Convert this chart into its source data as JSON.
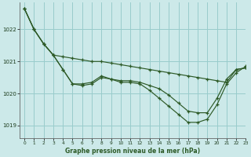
{
  "xlabel": "Graphe pression niveau de la mer (hPa)",
  "xlim": [
    -0.5,
    23
  ],
  "ylim": [
    1018.6,
    1022.85
  ],
  "yticks": [
    1019,
    1020,
    1021,
    1022
  ],
  "xticks": [
    0,
    1,
    2,
    3,
    4,
    5,
    6,
    7,
    8,
    9,
    10,
    11,
    12,
    13,
    14,
    15,
    16,
    17,
    18,
    19,
    20,
    21,
    22,
    23
  ],
  "background_color": "#cce9e9",
  "grid_color": "#99cccc",
  "line_color": "#2d5a27",
  "series": [
    {
      "y": [
        1022.65,
        1022.0,
        1021.55,
        1021.2,
        1021.15,
        1021.1,
        1021.05,
        1021.0,
        1021.0,
        1020.95,
        1020.9,
        1020.85,
        1020.8,
        1020.75,
        1020.7,
        1020.65,
        1020.6,
        1020.55,
        1020.5,
        1020.45,
        1020.4,
        1020.35,
        1020.75,
        1020.8
      ]
    },
    {
      "y": [
        1022.65,
        1022.0,
        1021.55,
        1021.2,
        1020.75,
        1020.3,
        1020.25,
        1020.3,
        1020.5,
        1020.45,
        1020.4,
        1020.4,
        1020.35,
        1020.25,
        1020.15,
        1019.95,
        1019.7,
        1019.45,
        1019.4,
        1019.4,
        1019.85,
        1020.45,
        1020.75,
        1020.8
      ]
    },
    {
      "y": [
        1022.65,
        1022.0,
        1021.55,
        1021.2,
        1020.75,
        1020.3,
        1020.3,
        1020.35,
        1020.55,
        1020.45,
        1020.35,
        1020.35,
        1020.3,
        1020.1,
        1019.85,
        1019.6,
        1019.35,
        1019.1,
        1019.1,
        1019.2,
        1019.65,
        1020.3,
        1020.65,
        1020.85
      ]
    }
  ]
}
